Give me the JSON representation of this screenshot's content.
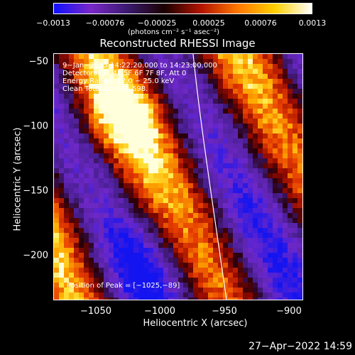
{
  "colorbar": {
    "ticks": [
      "−0.0013",
      "−0.00076",
      "−0.00025",
      "0.00025",
      "0.00076",
      "0.0013"
    ],
    "units": "(photons cm⁻² s⁻¹ asec⁻²)",
    "colors": [
      "#1010ff",
      "#7a28c8",
      "#3a1a6e",
      "#1a0000",
      "#b41400",
      "#ff7800",
      "#ffd000",
      "#ffffff"
    ]
  },
  "plot": {
    "title": "Reconstructed RHESSI Image",
    "info_lines": [
      "9−Jan−2005 14:22:20.000 to 14:23:00.000",
      "Detectors: 3F 4F 5F 6F 7F 8F, Att 0",
      "Energy Range: 12.0 − 25.0 keV",
      "Clean    Total counts: 598."
    ],
    "peak_label": "Position of Peak = [−1025,−89]",
    "xlabel": "Heliocentric X (arcsec)",
    "ylabel": "Heliocentric Y (arcsec)",
    "xticks": [
      "−1050",
      "−1000",
      "−950",
      "−900"
    ],
    "yticks": [
      "−50",
      "−100",
      "−150",
      "−200"
    ]
  },
  "chart_data": {
    "type": "heatmap",
    "title": "Reconstructed RHESSI Image",
    "xlabel": "Heliocentric X (arcsec)",
    "ylabel": "Heliocentric Y (arcsec)",
    "xlim": [
      -1080,
      -890
    ],
    "ylim": [
      -235,
      -45
    ],
    "color_range": [
      -0.0013,
      0.0013
    ],
    "peak": [
      -1025,
      -89
    ]
  },
  "footer": {
    "date": "27−Apr−2022 14:59"
  }
}
